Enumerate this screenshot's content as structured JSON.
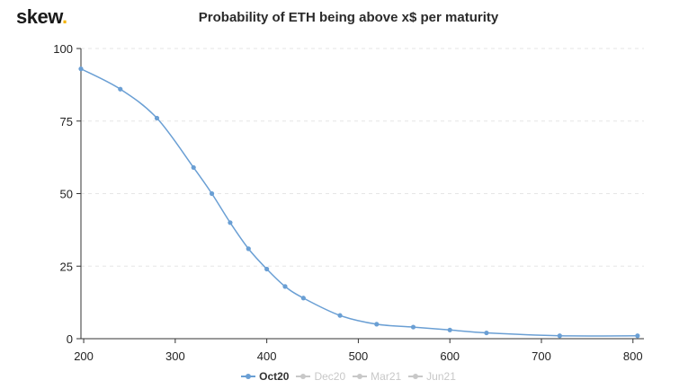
{
  "brand": {
    "name": "skew",
    "dot": "."
  },
  "chart_data": {
    "type": "line",
    "title": "Probability of ETH being above x$ per maturity",
    "xlabel": "",
    "ylabel": "",
    "xlim": [
      197,
      812
    ],
    "ylim": [
      0,
      100
    ],
    "x_ticks": [
      200,
      300,
      400,
      500,
      600,
      700,
      800
    ],
    "y_ticks": [
      0,
      25,
      50,
      75,
      100
    ],
    "grid": "horizontal dashed",
    "legend_position": "bottom-center",
    "series": [
      {
        "name": "Oct20",
        "color": "#6a9fd4",
        "visible": true,
        "x": [
          197,
          240,
          280,
          320,
          340,
          360,
          380,
          400,
          420,
          440,
          480,
          520,
          560,
          600,
          640,
          720,
          805
        ],
        "y": [
          93,
          86,
          76,
          59,
          50,
          40,
          31,
          24,
          18,
          14,
          8,
          5,
          4,
          3,
          2,
          1,
          1
        ]
      },
      {
        "name": "Dec20",
        "color": "#c8c8c8",
        "visible": false
      },
      {
        "name": "Mar21",
        "color": "#c8c8c8",
        "visible": false
      },
      {
        "name": "Jun21",
        "color": "#c8c8c8",
        "visible": false
      }
    ]
  }
}
